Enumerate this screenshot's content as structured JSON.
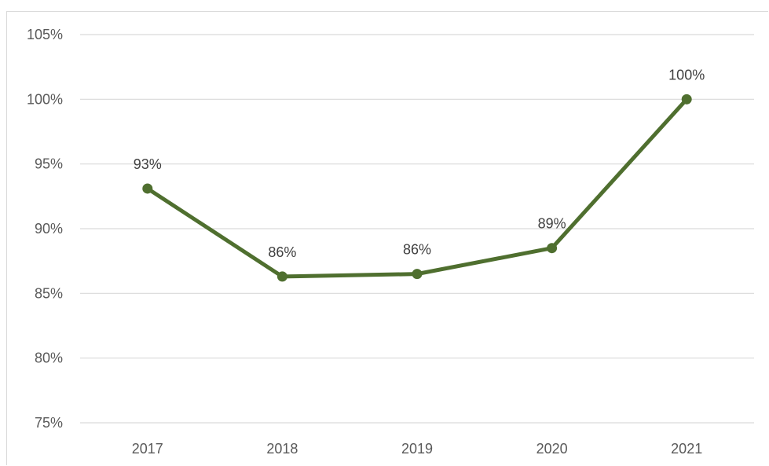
{
  "chart_data": {
    "type": "line",
    "categories": [
      "2017",
      "2018",
      "2019",
      "2020",
      "2021"
    ],
    "series": [
      {
        "values": [
          93.1,
          86.3,
          86.5,
          88.5,
          100
        ],
        "labels": [
          "93%",
          "86%",
          "86%",
          "89%",
          "100%"
        ]
      }
    ],
    "ylim": [
      75,
      105
    ],
    "y_ticks": [
      75,
      80,
      85,
      90,
      95,
      100,
      105
    ],
    "y_tick_labels": [
      "75%",
      "80%",
      "85%",
      "90%",
      "95%",
      "100%",
      "105%"
    ],
    "grid": true,
    "line_color": "#4f6f2f",
    "grid_color": "#d9d9d9",
    "legend": "none"
  }
}
